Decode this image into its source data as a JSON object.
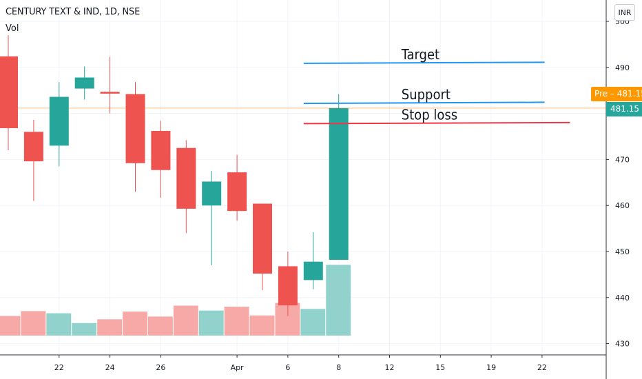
{
  "header": {
    "symbol": "CENTURY TEXT & IND, 1D, NSE",
    "volume_label": "Vol",
    "currency": "INR"
  },
  "badges": {
    "pre_label": "Pre",
    "pre_value": "481.15",
    "last_value": "481.15"
  },
  "colors": {
    "up": "#26a69a",
    "down": "#ef5350",
    "volume_up": "#92d2cc",
    "volume_down": "#f7a9a7",
    "target_line": "#2196f3",
    "support_line": "#2196f3",
    "stoploss_line": "#f23645",
    "pre_line": "#ffd3a8",
    "grid": "#f0f3fa"
  },
  "chart_data": {
    "type": "candlestick",
    "symbol": "CENTURY TEXT & IND",
    "interval": "1D",
    "exchange": "NSE",
    "ylim": [
      428,
      503
    ],
    "y_ticks": [
      430,
      440,
      450,
      460,
      470,
      480,
      490,
      500
    ],
    "y_tick_labels": [
      "430",
      "440",
      "450",
      "460",
      "470",
      "",
      "490",
      "500"
    ],
    "x_ticks": [
      {
        "slot": 2,
        "label": "22"
      },
      {
        "slot": 4,
        "label": "24"
      },
      {
        "slot": 6,
        "label": "26"
      },
      {
        "slot": 9,
        "label": "Apr"
      },
      {
        "slot": 11,
        "label": "6"
      },
      {
        "slot": 13,
        "label": "8"
      },
      {
        "slot": 15,
        "label": "12"
      },
      {
        "slot": 17,
        "label": "15"
      },
      {
        "slot": 19,
        "label": "19"
      },
      {
        "slot": 21,
        "label": "22"
      }
    ],
    "candles": [
      {
        "open": 492.4,
        "high": 497.0,
        "low": 472.0,
        "close": 476.8,
        "volume": 3.6
      },
      {
        "open": 476.0,
        "high": 478.6,
        "low": 461.0,
        "close": 469.6,
        "volume": 4.5
      },
      {
        "open": 473.0,
        "high": 486.8,
        "low": 468.5,
        "close": 483.6,
        "volume": 4.1
      },
      {
        "open": 485.4,
        "high": 490.2,
        "low": 483.0,
        "close": 487.8,
        "volume": 2.3
      },
      {
        "open": 484.7,
        "high": 492.3,
        "low": 480.0,
        "close": 484.3,
        "volume": 3.0
      },
      {
        "open": 484.2,
        "high": 486.8,
        "low": 463.0,
        "close": 469.2,
        "volume": 4.4
      },
      {
        "open": 476.2,
        "high": 478.4,
        "low": 461.7,
        "close": 467.7,
        "volume": 3.5
      },
      {
        "open": 472.5,
        "high": 474.2,
        "low": 454.0,
        "close": 459.3,
        "volume": 5.5
      },
      {
        "open": 460.0,
        "high": 467.5,
        "low": 447.0,
        "close": 465.2,
        "volume": 4.6
      },
      {
        "open": 467.2,
        "high": 471.0,
        "low": 456.7,
        "close": 458.8,
        "volume": 5.3
      },
      {
        "open": 460.4,
        "high": 460.4,
        "low": 441.6,
        "close": 445.2,
        "volume": 3.7
      },
      {
        "open": 446.8,
        "high": 450.0,
        "low": 436.0,
        "close": 438.3,
        "volume": 6.0
      },
      {
        "open": 443.8,
        "high": 454.2,
        "low": 441.8,
        "close": 447.8,
        "volume": 4.9
      },
      {
        "open": 448.2,
        "high": 484.2,
        "low": 448.2,
        "close": 481.15,
        "volume": 13.0
      }
    ],
    "annotations": [
      {
        "label": "Target",
        "price": 491.0,
        "from_slot": 12,
        "to_slot": 21.1,
        "color": "#2196f3"
      },
      {
        "label": "Support",
        "price": 482.3,
        "from_slot": 12,
        "to_slot": 21.1,
        "color": "#2196f3"
      },
      {
        "label": "Stop loss",
        "price": 477.9,
        "from_slot": 12,
        "to_slot": 22.1,
        "color": "#f23645"
      }
    ],
    "last_price": 481.15
  }
}
